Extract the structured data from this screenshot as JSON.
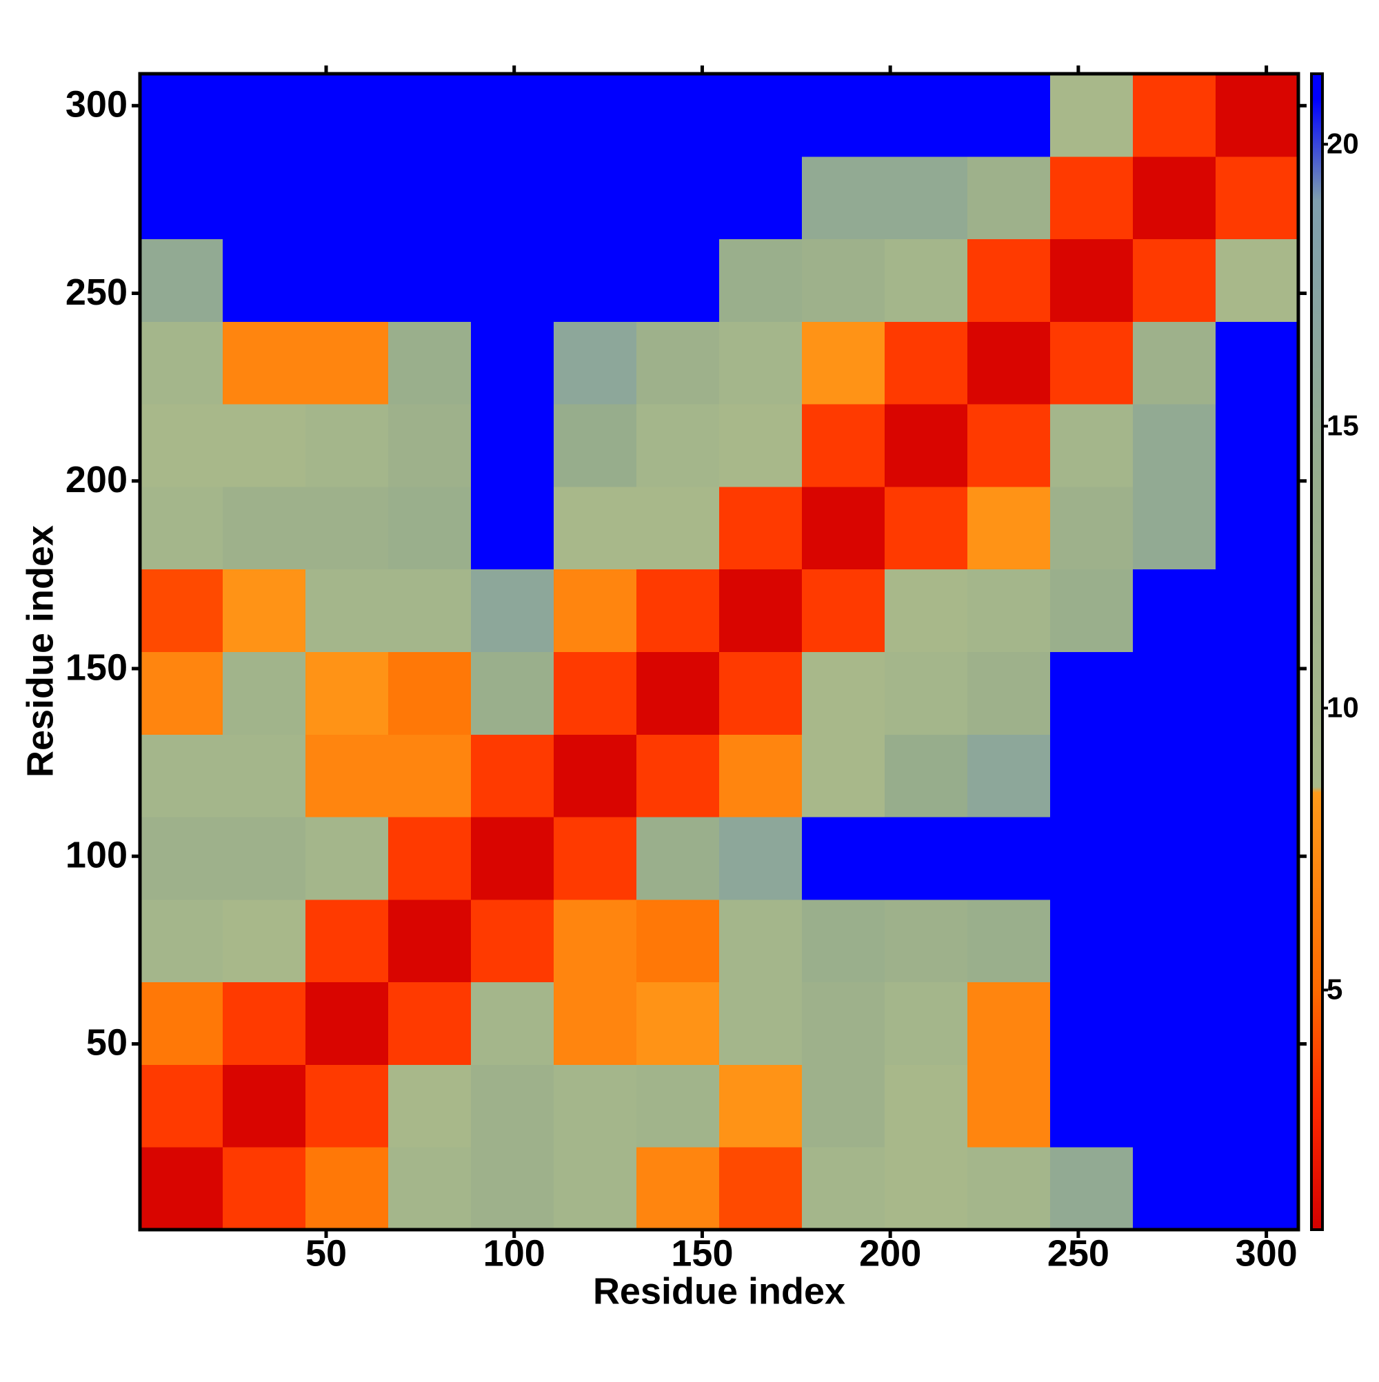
{
  "chart_data": {
    "type": "heatmap",
    "xlabel": "Residue index",
    "ylabel": "Residue index",
    "xbins": [
      0.5,
      22.5,
      44.5,
      66.5,
      88.5,
      110.5,
      132.5,
      154.5,
      176.5,
      198.5,
      220.5,
      242.5,
      264.5,
      286.5,
      308.5
    ],
    "ybins": [
      0.5,
      22.5,
      44.5,
      66.5,
      88.5,
      110.5,
      132.5,
      154.5,
      176.5,
      198.5,
      220.5,
      242.5,
      264.5,
      286.5,
      308.5
    ],
    "values": [
      [
        1,
        3.5,
        6,
        10,
        12,
        10,
        7,
        4,
        10,
        9,
        10,
        15,
        21,
        21
      ],
      [
        3.5,
        1,
        3.5,
        9,
        12,
        10,
        11,
        8,
        12,
        9,
        7,
        21,
        21,
        21
      ],
      [
        6,
        3.5,
        1,
        3.5,
        10,
        7,
        8,
        10,
        12,
        10,
        7,
        21,
        21,
        21
      ],
      [
        10,
        9,
        3.5,
        1,
        3.5,
        7,
        6,
        10,
        13,
        12,
        13,
        21,
        21,
        21
      ],
      [
        12,
        12,
        10,
        3.5,
        1,
        3.5,
        13,
        16,
        21,
        21,
        21,
        21,
        21,
        21
      ],
      [
        10,
        10,
        7,
        7,
        3.5,
        1,
        3.5,
        7,
        9,
        14,
        16,
        21,
        21,
        21
      ],
      [
        7,
        11,
        8,
        6,
        13,
        3.5,
        1,
        3.5,
        9,
        10,
        12,
        21,
        21,
        21
      ],
      [
        4,
        8,
        10,
        10,
        16,
        7,
        3.5,
        1,
        3.5,
        9,
        10,
        13,
        21,
        21
      ],
      [
        10,
        12,
        12,
        13,
        21,
        9,
        9,
        3.5,
        1,
        3.5,
        8,
        12,
        15,
        21
      ],
      [
        9,
        9,
        10,
        12,
        21,
        14,
        10,
        9,
        3.5,
        1,
        3.5,
        10,
        15,
        21
      ],
      [
        10,
        7,
        7,
        13,
        21,
        16,
        12,
        10,
        8,
        3.5,
        1,
        3.5,
        12,
        21
      ],
      [
        15,
        21,
        21,
        21,
        21,
        21,
        21,
        13,
        12,
        10,
        3.5,
        1,
        3.5,
        9
      ],
      [
        21,
        21,
        21,
        21,
        21,
        21,
        21,
        21,
        15,
        15,
        12,
        3.5,
        1,
        3.5
      ],
      [
        21,
        21,
        21,
        21,
        21,
        21,
        21,
        21,
        21,
        21,
        21,
        9,
        3.5,
        1
      ]
    ],
    "xlim": [
      0.5,
      308.5
    ],
    "ylim": [
      0.5,
      308.5
    ],
    "xticks": [
      50,
      100,
      150,
      200,
      250,
      300
    ],
    "yticks": [
      50,
      100,
      150,
      200,
      250,
      300
    ],
    "clim": [
      0.75,
      21.25
    ],
    "cticks": [
      5,
      10,
      15,
      20
    ],
    "colorscale": [
      {
        "value": 0.75,
        "color": "#d40000"
      },
      {
        "value": 3,
        "color": "#ff2a00"
      },
      {
        "value": 5,
        "color": "#ff6a00"
      },
      {
        "value": 8.5,
        "color": "#ff9a1a"
      },
      {
        "value": 8.6,
        "color": "#a9b98a"
      },
      {
        "value": 14,
        "color": "#97ad8c"
      },
      {
        "value": 19,
        "color": "#7f9fae"
      },
      {
        "value": 20.8,
        "color": "#0000ff"
      },
      {
        "value": 21.25,
        "color": "#0000ff"
      }
    ]
  }
}
